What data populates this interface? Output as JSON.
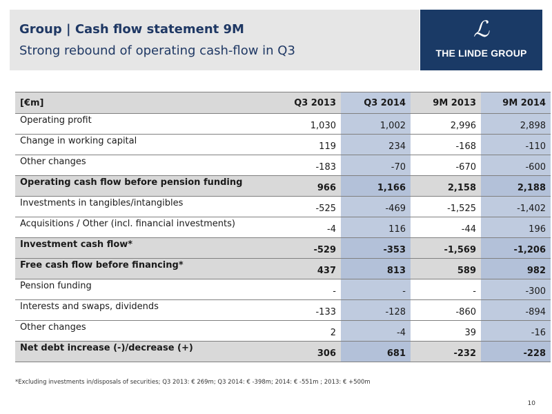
{
  "header": {
    "title": "Group | Cash flow statement 9M",
    "subtitle": "Strong rebound of operating cash-flow in Q3",
    "logo_glyph": "ℒ",
    "logo_text": "THE LINDE GROUP"
  },
  "table": {
    "columns": [
      "[€m]",
      "Q3 2013",
      "Q3 2014",
      "9M 2013",
      "9M 2014"
    ],
    "rows": [
      {
        "label": "Operating profit",
        "values": [
          "1,030",
          "1,002",
          "2,996",
          "2,898"
        ],
        "bold": false
      },
      {
        "label": "Change in working capital",
        "values": [
          "119",
          "234",
          "-168",
          "-110"
        ],
        "bold": false
      },
      {
        "label": "Other changes",
        "values": [
          "-183",
          "-70",
          "-670",
          "-600"
        ],
        "bold": false
      },
      {
        "label": "Operating cash flow before pension funding",
        "values": [
          "966",
          "1,166",
          "2,158",
          "2,188"
        ],
        "bold": true
      },
      {
        "label": "Investments in tangibles/intangibles",
        "values": [
          "-525",
          "-469",
          "-1,525",
          "-1,402"
        ],
        "bold": false
      },
      {
        "label": "Acquisitions / Other (incl. financial investments)",
        "values": [
          "-4",
          "116",
          "-44",
          "196"
        ],
        "bold": false
      },
      {
        "label": "Investment cash flow*",
        "values": [
          "-529",
          "-353",
          "-1,569",
          "-1,206"
        ],
        "bold": true
      },
      {
        "label": "Free cash flow before financing*",
        "values": [
          "437",
          "813",
          "589",
          "982"
        ],
        "bold": true
      },
      {
        "label": "Pension funding",
        "values": [
          "-",
          "-",
          "-",
          "-300"
        ],
        "bold": false
      },
      {
        "label": "Interests and swaps, dividends",
        "values": [
          "-133",
          "-128",
          "-860",
          "-894"
        ],
        "bold": false
      },
      {
        "label": "Other changes",
        "values": [
          "2",
          "-4",
          "39",
          "-16"
        ],
        "bold": false
      },
      {
        "label": "Net debt increase (-)/decrease (+)",
        "values": [
          "306",
          "681",
          "-232",
          "-228"
        ],
        "bold": true
      }
    ]
  },
  "footnote": "*Excluding investments in/disposals of securities; Q3 2013: € 269m; Q3 2014: € -398m; 2014: € -551m ; 2013: € +500m",
  "page_number": "10"
}
